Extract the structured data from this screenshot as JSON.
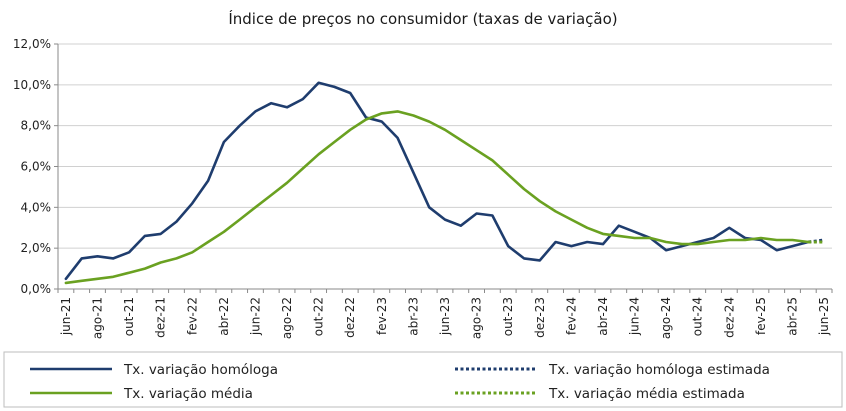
{
  "chart_data": {
    "type": "line",
    "title": "Índice de preços no consumidor  (taxas  de variação)",
    "xlabel": "",
    "ylabel": "",
    "ylim": [
      0,
      12
    ],
    "y_ticks": [
      0,
      2,
      4,
      6,
      8,
      10,
      12
    ],
    "y_tick_labels": [
      "0,0%",
      "2,0%",
      "4,0%",
      "6,0%",
      "8,0%",
      "10,0%",
      "12,0%"
    ],
    "x_tick_labels": [
      "jun-21",
      "ago-21",
      "out-21",
      "dez-21",
      "fev-22",
      "abr-22",
      "jun-22",
      "ago-22",
      "out-22",
      "dez-22",
      "fev-23",
      "abr-23",
      "jun-23",
      "ago-23",
      "out-23",
      "dez-23",
      "fev-24",
      "abr-24",
      "jun-24",
      "ago-24",
      "out-24",
      "dez-24",
      "fev-25",
      "abr-25",
      "jun-25"
    ],
    "grid": "horizontal",
    "legend_position": "bottom",
    "series": [
      {
        "name": "Tx. variação homóloga",
        "color": "#1f3d6e",
        "style": "solid",
        "x": [
          "jun-21",
          "jul-21",
          "ago-21",
          "set-21",
          "out-21",
          "nov-21",
          "dez-21",
          "jan-22",
          "fev-22",
          "mar-22",
          "abr-22",
          "mai-22",
          "jun-22",
          "jul-22",
          "ago-22",
          "set-22",
          "out-22",
          "nov-22",
          "dez-22",
          "jan-23",
          "fev-23",
          "mar-23",
          "abr-23",
          "mai-23",
          "jun-23",
          "jul-23",
          "ago-23",
          "set-23",
          "out-23",
          "nov-23",
          "dez-23",
          "jan-24",
          "fev-24",
          "mar-24",
          "abr-24",
          "mai-24",
          "jun-24",
          "jul-24",
          "ago-24",
          "set-24",
          "out-24",
          "nov-24",
          "dez-24",
          "jan-25",
          "fev-25",
          "mar-25",
          "abr-25",
          "mai-25"
        ],
        "values": [
          0.5,
          1.5,
          1.6,
          1.5,
          1.8,
          2.6,
          2.7,
          3.3,
          4.2,
          5.3,
          7.2,
          8.0,
          8.7,
          9.1,
          8.9,
          9.3,
          10.1,
          9.9,
          9.6,
          8.4,
          8.2,
          7.4,
          5.7,
          4.0,
          3.4,
          3.1,
          3.7,
          3.6,
          2.1,
          1.5,
          1.4,
          2.3,
          2.1,
          2.3,
          2.2,
          3.1,
          2.8,
          2.5,
          1.9,
          2.1,
          2.3,
          2.5,
          3.0,
          2.5,
          2.4,
          1.9,
          2.1,
          2.3
        ]
      },
      {
        "name": "Tx. variação homóloga estimada",
        "color": "#1f3d6e",
        "style": "dotted",
        "x": [
          "mai-25",
          "jun-25"
        ],
        "values": [
          2.3,
          2.4
        ]
      },
      {
        "name": "Tx. variação média",
        "color": "#6aa121",
        "style": "solid",
        "x": [
          "jun-21",
          "jul-21",
          "ago-21",
          "set-21",
          "out-21",
          "nov-21",
          "dez-21",
          "jan-22",
          "fev-22",
          "mar-22",
          "abr-22",
          "mai-22",
          "jun-22",
          "jul-22",
          "ago-22",
          "set-22",
          "out-22",
          "nov-22",
          "dez-22",
          "jan-23",
          "fev-23",
          "mar-23",
          "abr-23",
          "mai-23",
          "jun-23",
          "jul-23",
          "ago-23",
          "set-23",
          "out-23",
          "nov-23",
          "dez-23",
          "jan-24",
          "fev-24",
          "mar-24",
          "abr-24",
          "mai-24",
          "jun-24",
          "jul-24",
          "ago-24",
          "set-24",
          "out-24",
          "nov-24",
          "dez-24",
          "jan-25",
          "fev-25",
          "mar-25",
          "abr-25",
          "mai-25"
        ],
        "values": [
          0.3,
          0.4,
          0.5,
          0.6,
          0.8,
          1.0,
          1.3,
          1.5,
          1.8,
          2.3,
          2.8,
          3.4,
          4.0,
          4.6,
          5.2,
          5.9,
          6.6,
          7.2,
          7.8,
          8.3,
          8.6,
          8.7,
          8.5,
          8.2,
          7.8,
          7.3,
          6.8,
          6.3,
          5.6,
          4.9,
          4.3,
          3.8,
          3.4,
          3.0,
          2.7,
          2.6,
          2.5,
          2.5,
          2.3,
          2.2,
          2.2,
          2.3,
          2.4,
          2.4,
          2.5,
          2.4,
          2.4,
          2.3
        ]
      },
      {
        "name": "Tx. variação média  estimada",
        "color": "#6aa121",
        "style": "dotted",
        "x": [
          "mai-25",
          "jun-25"
        ],
        "values": [
          2.3,
          2.3
        ]
      }
    ]
  }
}
